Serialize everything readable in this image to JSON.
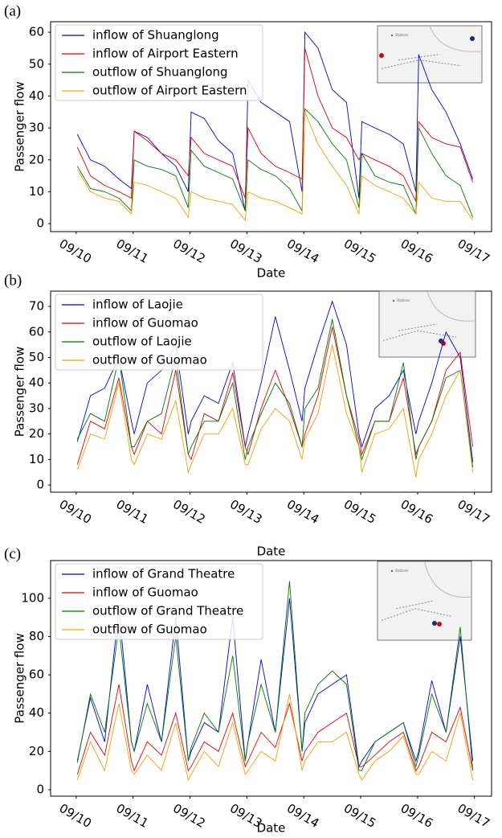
{
  "chart_data": [
    {
      "type": "line",
      "panel_label": "(a)",
      "ylabel": "Passenger flow",
      "xlabel": "Date",
      "inset_legend": "Stations",
      "legend": "upper left",
      "grid": false,
      "x": [
        10.02,
        10.25,
        10.5,
        10.75,
        10.97,
        11.02,
        11.25,
        11.5,
        11.75,
        11.97,
        12.02,
        12.25,
        12.5,
        12.75,
        12.97,
        13.02,
        13.25,
        13.5,
        13.75,
        13.97,
        14.02,
        14.25,
        14.5,
        14.75,
        14.97,
        15.02,
        15.25,
        15.5,
        15.75,
        15.97,
        16.02,
        16.25,
        16.5,
        16.75,
        16.97
      ],
      "xlim": [
        9.55,
        17.3
      ],
      "ylim": [
        -2.5,
        63.3
      ],
      "xticks": [
        {
          "value": 10,
          "label": "09/10"
        },
        {
          "value": 11,
          "label": "09/11"
        },
        {
          "value": 12,
          "label": "09/12"
        },
        {
          "value": 13,
          "label": "09/13"
        },
        {
          "value": 14,
          "label": "09/14"
        },
        {
          "value": 15,
          "label": "09/15"
        },
        {
          "value": 16,
          "label": "09/16"
        },
        {
          "value": 17,
          "label": "09/17"
        }
      ],
      "yticks": [
        0,
        10,
        20,
        30,
        40,
        50,
        60
      ],
      "series": [
        {
          "name": "inflow of Shuanglong",
          "color": "#0000cc",
          "values": [
            28,
            20,
            18,
            14,
            11,
            29,
            27,
            22,
            18,
            10,
            35,
            33,
            26,
            22,
            4,
            45,
            38,
            35,
            32,
            10,
            60,
            55,
            42,
            38,
            8,
            32,
            30,
            28,
            25,
            10,
            53,
            42,
            35,
            25,
            14
          ]
        },
        {
          "name": "inflow of Airport Eastern",
          "color": "#dd0000",
          "values": [
            24,
            15,
            12,
            10,
            8,
            29,
            26,
            22,
            20,
            15,
            27,
            22,
            20,
            18,
            8,
            30,
            22,
            18,
            16,
            14,
            55,
            40,
            30,
            27,
            20,
            22,
            20,
            18,
            15,
            7,
            32,
            27,
            25,
            24,
            13
          ]
        },
        {
          "name": "outflow of Shuanglong",
          "color": "#007700",
          "values": [
            18,
            11,
            10,
            8,
            4,
            20,
            18,
            17,
            15,
            5,
            23,
            18,
            16,
            14,
            4,
            20,
            17,
            15,
            11,
            4,
            36,
            32,
            25,
            20,
            5,
            22,
            15,
            13,
            12,
            3,
            30,
            22,
            15,
            12,
            2
          ]
        },
        {
          "name": "outflow of Airport Eastern",
          "color": "#f0a000",
          "values": [
            17,
            10,
            8,
            7,
            3,
            13,
            12,
            10,
            8,
            2,
            10,
            8,
            7,
            6,
            1,
            10,
            8,
            7,
            5,
            3,
            35,
            25,
            18,
            12,
            3,
            15,
            12,
            10,
            8,
            3,
            13,
            8,
            7,
            7,
            1
          ]
        }
      ]
    },
    {
      "type": "line",
      "panel_label": "(b)",
      "ylabel": "Passenger flow",
      "xlabel": "Date",
      "inset_legend": "Stations",
      "legend": "upper left",
      "grid": false,
      "x": [
        10.02,
        10.25,
        10.5,
        10.75,
        10.97,
        11.02,
        11.25,
        11.5,
        11.75,
        11.97,
        12.02,
        12.25,
        12.5,
        12.75,
        12.97,
        13.02,
        13.25,
        13.5,
        13.75,
        13.97,
        14.02,
        14.25,
        14.5,
        14.75,
        14.97,
        15.02,
        15.25,
        15.5,
        15.75,
        15.97,
        16.02,
        16.25,
        16.5,
        16.75,
        16.97
      ],
      "xlim": [
        9.55,
        17.3
      ],
      "ylim": [
        -2.8,
        76
      ],
      "xticks": [
        {
          "value": 10,
          "label": "09/10"
        },
        {
          "value": 11,
          "label": "09/11"
        },
        {
          "value": 12,
          "label": "09/12"
        },
        {
          "value": 13,
          "label": "09/13"
        },
        {
          "value": 14,
          "label": "09/14"
        },
        {
          "value": 15,
          "label": "09/15"
        },
        {
          "value": 16,
          "label": "09/16"
        },
        {
          "value": 17,
          "label": "09/17"
        }
      ],
      "yticks": [
        0,
        10,
        20,
        30,
        40,
        50,
        60,
        70
      ],
      "series": [
        {
          "name": "inflow of Laojie",
          "color": "#0000cc",
          "values": [
            17,
            35,
            38,
            50,
            25,
            20,
            40,
            45,
            55,
            20,
            25,
            35,
            32,
            48,
            15,
            20,
            40,
            66,
            45,
            25,
            38,
            55,
            72,
            55,
            20,
            15,
            30,
            35,
            45,
            20,
            25,
            40,
            60,
            50,
            9
          ]
        },
        {
          "name": "inflow of Guomao",
          "color": "#dd0000",
          "values": [
            8,
            25,
            22,
            42,
            15,
            12,
            25,
            20,
            45,
            12,
            10,
            28,
            25,
            44,
            15,
            12,
            30,
            45,
            30,
            15,
            20,
            35,
            62,
            35,
            18,
            12,
            25,
            25,
            42,
            12,
            15,
            25,
            45,
            52,
            15
          ]
        },
        {
          "name": "outflow of Laojie",
          "color": "#007700",
          "values": [
            18,
            28,
            25,
            50,
            15,
            15,
            25,
            28,
            50,
            12,
            15,
            25,
            25,
            40,
            10,
            15,
            28,
            40,
            32,
            15,
            30,
            38,
            65,
            35,
            15,
            10,
            25,
            25,
            48,
            10,
            15,
            25,
            42,
            45,
            7
          ]
        },
        {
          "name": "outflow of Guomao",
          "color": "#f0a000",
          "values": [
            6,
            20,
            18,
            40,
            10,
            8,
            20,
            18,
            33,
            5,
            8,
            20,
            20,
            30,
            8,
            8,
            22,
            30,
            25,
            10,
            18,
            28,
            55,
            28,
            15,
            5,
            20,
            22,
            30,
            3,
            10,
            20,
            35,
            45,
            5
          ]
        }
      ]
    },
    {
      "type": "line",
      "panel_label": "(c)",
      "ylabel": "Passenger flow",
      "xlabel": "Date",
      "inset_legend": "Stations",
      "legend": "upper left",
      "grid": false,
      "x": [
        10.02,
        10.25,
        10.5,
        10.75,
        10.97,
        11.02,
        11.25,
        11.5,
        11.75,
        11.97,
        12.02,
        12.25,
        12.5,
        12.75,
        12.97,
        13.02,
        13.25,
        13.5,
        13.75,
        13.97,
        14.02,
        14.25,
        14.5,
        14.75,
        14.97,
        15.02,
        15.25,
        15.5,
        15.75,
        15.97,
        16.02,
        16.25,
        16.5,
        16.75,
        16.97
      ],
      "xlim": [
        9.55,
        17.3
      ],
      "ylim": [
        -3.4,
        119.7
      ],
      "xticks": [
        {
          "value": 10,
          "label": "09/10"
        },
        {
          "value": 11,
          "label": "09/11"
        },
        {
          "value": 12,
          "label": "09/12"
        },
        {
          "value": 13,
          "label": "09/13"
        },
        {
          "value": 14,
          "label": "09/14"
        },
        {
          "value": 15,
          "label": "09/15"
        },
        {
          "value": 16,
          "label": "09/16"
        },
        {
          "value": 17,
          "label": "09/17"
        }
      ],
      "yticks": [
        0,
        20,
        40,
        60,
        80,
        100
      ],
      "series": [
        {
          "name": "inflow of Grand Theatre",
          "color": "#0000cc",
          "values": [
            15,
            48,
            25,
            95,
            25,
            20,
            55,
            25,
            90,
            15,
            20,
            35,
            30,
            90,
            15,
            25,
            68,
            30,
            100,
            20,
            35,
            50,
            55,
            60,
            12,
            15,
            25,
            30,
            35,
            15,
            20,
            57,
            30,
            80,
            15
          ]
        },
        {
          "name": "inflow of Guomao",
          "color": "#dd0000",
          "values": [
            8,
            30,
            18,
            55,
            15,
            10,
            25,
            18,
            40,
            10,
            12,
            25,
            20,
            40,
            12,
            15,
            30,
            22,
            45,
            15,
            20,
            30,
            35,
            40,
            12,
            12,
            18,
            25,
            30,
            10,
            12,
            30,
            25,
            43,
            10
          ]
        },
        {
          "name": "outflow of Grand Theatre",
          "color": "#007700",
          "values": [
            14,
            50,
            30,
            85,
            25,
            20,
            45,
            25,
            80,
            15,
            22,
            40,
            30,
            70,
            15,
            25,
            55,
            30,
            109,
            20,
            40,
            55,
            62,
            55,
            10,
            10,
            25,
            30,
            35,
            12,
            18,
            50,
            30,
            85,
            10
          ]
        },
        {
          "name": "outflow of Guomao",
          "color": "#f0a000",
          "values": [
            5,
            25,
            10,
            45,
            10,
            8,
            18,
            10,
            35,
            5,
            8,
            20,
            12,
            35,
            8,
            10,
            20,
            15,
            50,
            10,
            15,
            25,
            25,
            30,
            8,
            5,
            15,
            20,
            28,
            8,
            8,
            20,
            15,
            40,
            5
          ]
        }
      ]
    }
  ]
}
